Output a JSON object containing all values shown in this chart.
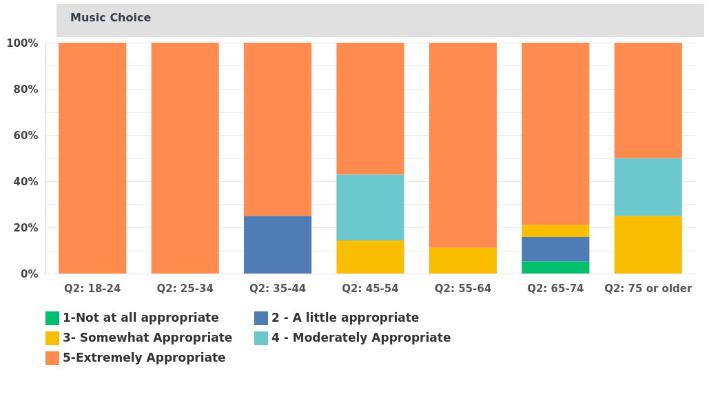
{
  "chart_data": {
    "type": "bar",
    "title": "Music Choice",
    "stacked": true,
    "categories": [
      "Q2: 18-24",
      "Q2: 25-34",
      "Q2: 35-44",
      "Q2: 45-54",
      "Q2: 55-64",
      "Q2: 65-74",
      "Q2: 75 or older"
    ],
    "series": [
      {
        "name": "1-Not at all appropriate",
        "color": "#00bf6f",
        "values": [
          0,
          0,
          0,
          0,
          0,
          5.3,
          0
        ]
      },
      {
        "name": "2 - A little appropriate",
        "color": "#507cb6",
        "values": [
          0,
          0,
          25,
          0,
          0,
          10.5,
          0
        ]
      },
      {
        "name": "3- Somewhat Appropriate",
        "color": "#f9be00",
        "values": [
          0,
          0,
          0,
          14.3,
          11.1,
          5.3,
          25
        ]
      },
      {
        "name": "4 - Moderately Appropriate",
        "color": "#6bc8cd",
        "values": [
          0,
          0,
          0,
          28.6,
          0,
          0,
          25
        ]
      },
      {
        "name": "5-Extremely Appropriate",
        "color": "#ff8b4f",
        "values": [
          100,
          100,
          75,
          57.1,
          88.9,
          78.9,
          50
        ]
      }
    ],
    "ylim": [
      0,
      100
    ],
    "yticks": [
      {
        "value": 0,
        "label": "0%"
      },
      {
        "value": 10,
        "label": null
      },
      {
        "value": 20,
        "label": "20%"
      },
      {
        "value": 30,
        "label": null
      },
      {
        "value": 40,
        "label": "40%"
      },
      {
        "value": 50,
        "label": null
      },
      {
        "value": 60,
        "label": "60%"
      },
      {
        "value": 70,
        "label": null
      },
      {
        "value": 80,
        "label": "80%"
      },
      {
        "value": 90,
        "label": null
      },
      {
        "value": 100,
        "label": "100%"
      }
    ],
    "grid": true,
    "legend": "bottom"
  }
}
